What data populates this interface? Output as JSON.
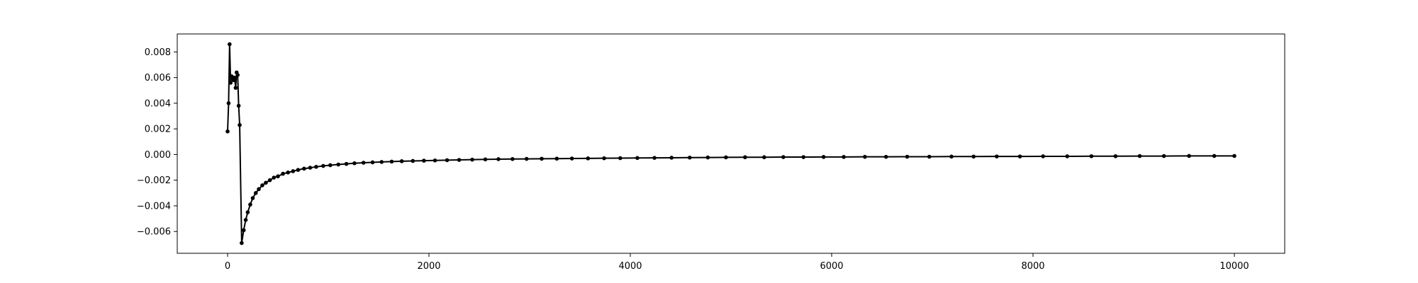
{
  "chart_data": {
    "type": "line",
    "title": "",
    "xlabel": "",
    "ylabel": "",
    "xlim": [
      -500,
      10500
    ],
    "ylim": [
      -0.0077,
      0.0094
    ],
    "grid": false,
    "legend": "none",
    "x_ticks": [
      "0",
      "2000",
      "4000",
      "6000",
      "8000",
      "10000"
    ],
    "y_ticks": [
      "−0.006",
      "−0.004",
      "−0.002",
      "0.000",
      "0.002",
      "0.004",
      "0.006",
      "0.008"
    ],
    "series": [
      {
        "color": "#000000",
        "marker": "dot",
        "x": [
          0,
          10,
          20,
          30,
          40,
          50,
          60,
          70,
          80,
          90,
          100,
          110,
          120,
          140,
          160,
          180,
          200,
          225,
          250,
          280,
          310,
          345,
          380,
          420,
          460,
          500,
          550,
          600,
          650,
          700,
          760,
          820,
          880,
          950,
          1020,
          1100,
          1180,
          1260,
          1350,
          1440,
          1530,
          1630,
          1730,
          1840,
          1950,
          2060,
          2180,
          2300,
          2430,
          2560,
          2690,
          2830,
          2970,
          3120,
          3270,
          3420,
          3580,
          3740,
          3900,
          4070,
          4240,
          4410,
          4590,
          4770,
          4950,
          5140,
          5330,
          5520,
          5720,
          5920,
          6120,
          6330,
          6540,
          6750,
          6970,
          7190,
          7410,
          7640,
          7870,
          8100,
          8340,
          8580,
          8820,
          9060,
          9300,
          9550,
          9800,
          10000
        ],
        "y": [
          0.0018,
          0.004,
          0.0086,
          0.0056,
          0.0061,
          0.0059,
          0.0058,
          0.006,
          0.0052,
          0.0064,
          0.0062,
          0.0038,
          0.0023,
          -0.0069,
          -0.0059,
          -0.0051,
          -0.0045,
          -0.0039,
          -0.0034,
          -0.003,
          -0.0027,
          -0.0024,
          -0.0022,
          -0.002,
          -0.0018,
          -0.0017,
          -0.0015,
          -0.0014,
          -0.0013,
          -0.0012,
          -0.0011,
          -0.00103,
          -0.00096,
          -0.00089,
          -0.00083,
          -0.00078,
          -0.00073,
          -0.00068,
          -0.00064,
          -0.00061,
          -0.00058,
          -0.00055,
          -0.00052,
          -0.0005,
          -0.00048,
          -0.00046,
          -0.00044,
          -0.00042,
          -0.0004,
          -0.00038,
          -0.00036,
          -0.00035,
          -0.00034,
          -0.00033,
          -0.00032,
          -0.00031,
          -0.0003,
          -0.00029,
          -0.00028,
          -0.00027,
          -0.00026,
          -0.00025,
          -0.00024,
          -0.00023,
          -0.00022,
          -0.00021,
          -0.00021,
          -0.0002,
          -0.0002,
          -0.00019,
          -0.00019,
          -0.00018,
          -0.00018,
          -0.00017,
          -0.00017,
          -0.00016,
          -0.00016,
          -0.00015,
          -0.00015,
          -0.00014,
          -0.00014,
          -0.00013,
          -0.00013,
          -0.00012,
          -0.00012,
          -0.00011,
          -0.00011,
          -0.00011
        ]
      }
    ]
  }
}
